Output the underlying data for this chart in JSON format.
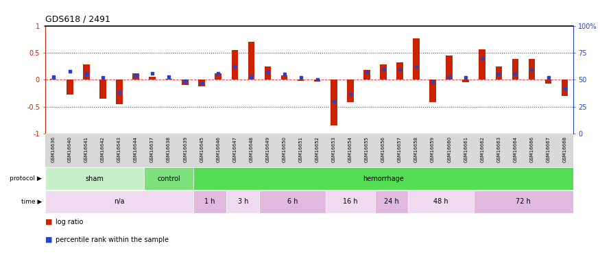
{
  "title": "GDS618 / 2491",
  "samples": [
    "GSM16636",
    "GSM16640",
    "GSM16641",
    "GSM16642",
    "GSM16643",
    "GSM16644",
    "GSM16637",
    "GSM16638",
    "GSM16639",
    "GSM16645",
    "GSM16646",
    "GSM16647",
    "GSM16648",
    "GSM16649",
    "GSM16650",
    "GSM16651",
    "GSM16652",
    "GSM16653",
    "GSM16654",
    "GSM16655",
    "GSM16656",
    "GSM16657",
    "GSM16658",
    "GSM16659",
    "GSM16660",
    "GSM16661",
    "GSM16662",
    "GSM16663",
    "GSM16664",
    "GSM16666",
    "GSM16667",
    "GSM16668"
  ],
  "log_ratio": [
    0.02,
    -0.28,
    0.28,
    -0.35,
    -0.46,
    0.12,
    0.05,
    0.02,
    -0.1,
    -0.12,
    0.12,
    0.55,
    0.7,
    0.25,
    0.08,
    -0.02,
    -0.03,
    -0.85,
    -0.42,
    0.18,
    0.28,
    0.32,
    0.77,
    -0.42,
    0.45,
    -0.05,
    0.56,
    0.25,
    0.38,
    0.38,
    -0.07,
    -0.3
  ],
  "percentile": [
    53,
    58,
    55,
    52,
    38,
    54,
    56,
    53,
    49,
    47,
    56,
    62,
    53,
    57,
    55,
    52,
    50,
    30,
    37,
    57,
    60,
    60,
    62,
    48,
    53,
    52,
    70,
    55,
    55,
    60,
    52,
    42
  ],
  "protocol_groups": [
    {
      "label": "sham",
      "start": 0,
      "end": 6,
      "color": "#c8f0c8"
    },
    {
      "label": "control",
      "start": 6,
      "end": 9,
      "color": "#7de07d"
    },
    {
      "label": "hemorrhage",
      "start": 9,
      "end": 32,
      "color": "#55dd55"
    }
  ],
  "time_groups": [
    {
      "label": "n/a",
      "start": 0,
      "end": 9,
      "color": "#f0daf0"
    },
    {
      "label": "1 h",
      "start": 9,
      "end": 11,
      "color": "#e0b8e0"
    },
    {
      "label": "3 h",
      "start": 11,
      "end": 13,
      "color": "#f0daf0"
    },
    {
      "label": "6 h",
      "start": 13,
      "end": 17,
      "color": "#e0b8e0"
    },
    {
      "label": "16 h",
      "start": 17,
      "end": 20,
      "color": "#f0daf0"
    },
    {
      "label": "24 h",
      "start": 20,
      "end": 22,
      "color": "#e0b8e0"
    },
    {
      "label": "48 h",
      "start": 22,
      "end": 26,
      "color": "#f0daf0"
    },
    {
      "label": "72 h",
      "start": 26,
      "end": 32,
      "color": "#e0b8e0"
    }
  ],
  "bar_color": "#cc2200",
  "dot_color": "#2244cc",
  "ylim": [
    -1,
    1
  ],
  "y2lim": [
    0,
    100
  ],
  "y_ticks": [
    -1,
    -0.5,
    0,
    0.5,
    1
  ],
  "y2_ticks": [
    0,
    25,
    50,
    75,
    100
  ],
  "hline_color": "#ff4444",
  "dotted_line_color": "#555555",
  "bg_color": "#ffffff"
}
